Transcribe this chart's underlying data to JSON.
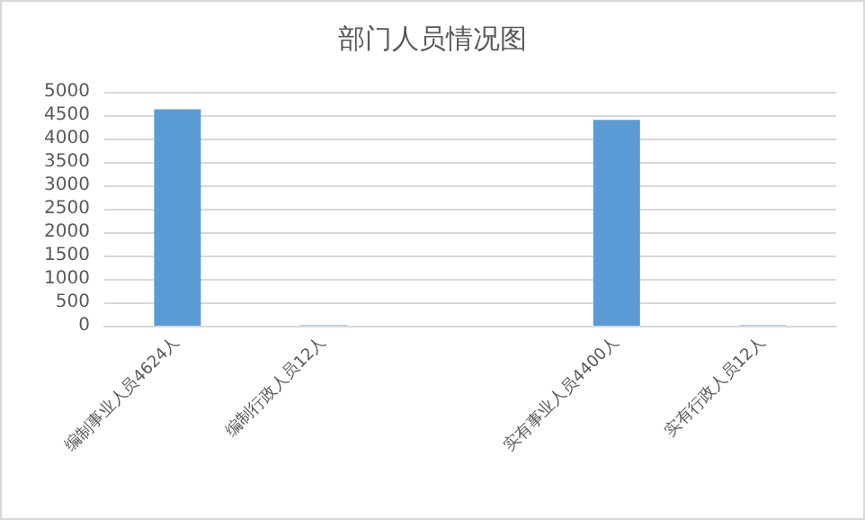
{
  "chart_data": {
    "type": "bar",
    "title": "部门人员情况图",
    "categories": [
      "编制事业人员4624人",
      "编制行政人员12人",
      null,
      "实有事业人员4400人",
      "实有行政人员12人"
    ],
    "values": [
      4624,
      12,
      null,
      4400,
      12
    ],
    "color": "#5b9bd5",
    "ylim": [
      0,
      5000
    ],
    "yticks": [
      0,
      500,
      1000,
      1500,
      2000,
      2500,
      3000,
      3500,
      4000,
      4500,
      5000
    ],
    "grid": "y"
  }
}
